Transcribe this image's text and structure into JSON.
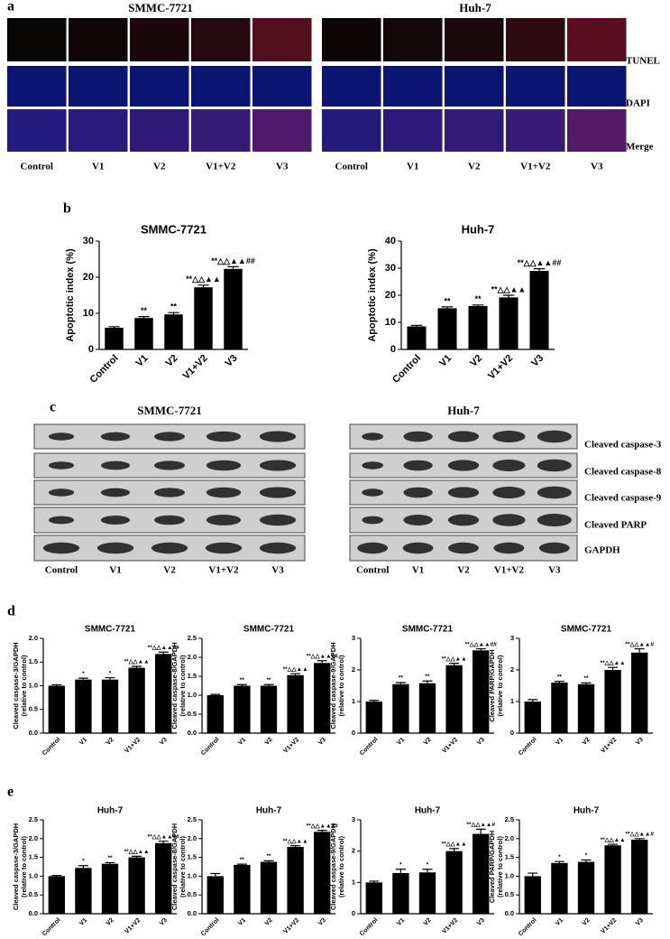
{
  "panel_labels": {
    "a": "a",
    "b": "b",
    "c": "c",
    "d": "d",
    "e": "e"
  },
  "panel_a": {
    "groups": [
      {
        "title": "SMMC-7721",
        "columns": [
          "Control",
          "V1",
          "V2",
          "V1+V2",
          "V3"
        ]
      },
      {
        "title": "Huh-7",
        "columns": [
          "Control",
          "V1",
          "V2",
          "V1+V2",
          "V3"
        ]
      }
    ],
    "rows": [
      "TUNEL",
      "DAPI",
      "Merge"
    ]
  },
  "panel_c": {
    "groups": [
      {
        "title": "SMMC-7721",
        "columns": [
          "Control",
          "V1",
          "V2",
          "V1+V2",
          "V3"
        ]
      },
      {
        "title": "Huh-7",
        "columns": [
          "Control",
          "V1",
          "V2",
          "V1+V2",
          "V3"
        ]
      }
    ],
    "rows": [
      "Cleaved caspase-3",
      "Cleaved caspase-8",
      "Cleaved caspase-9",
      "Cleaved PARP",
      "GAPDH"
    ]
  },
  "chart_data": [
    {
      "type": "bar",
      "title": "SMMC-7721",
      "y_label": [
        "Apoptotic index (%)"
      ],
      "categories": [
        "Control",
        "V1",
        "V2",
        "V1+V2",
        "V3"
      ],
      "values": [
        6,
        8.7,
        9.7,
        17.2,
        22.3
      ],
      "errors": [
        0.3,
        0.4,
        0.5,
        0.6,
        0.6
      ],
      "annotations": [
        null,
        "**",
        "**",
        "**△△▲▲",
        "**△△▲▲##"
      ],
      "color": "#000000",
      "ylim": [
        0,
        30
      ],
      "yticks": [
        0,
        10,
        20,
        30
      ]
    },
    {
      "type": "bar",
      "title": "Huh-7",
      "y_label": [
        "Apoptotic index (%)"
      ],
      "categories": [
        "Control",
        "V1",
        "V2",
        "V1+V2",
        "V3"
      ],
      "values": [
        8.5,
        15.2,
        16,
        19.2,
        29
      ],
      "errors": [
        0.4,
        0.5,
        0.4,
        0.8,
        0.8
      ],
      "annotations": [
        null,
        "**",
        "**",
        "**△△▲▲",
        "**△△▲▲##"
      ],
      "color": "#000000",
      "ylim": [
        0,
        40
      ],
      "yticks": [
        0,
        10,
        20,
        30,
        40
      ]
    },
    {
      "type": "bar",
      "title": "SMMC-7721",
      "y_label": [
        "Cleaved caspase-3/GAPDH",
        "(relative to control)"
      ],
      "categories": [
        "Control",
        "V1",
        "V2",
        "V1+V2",
        "V3"
      ],
      "values": [
        1.0,
        1.13,
        1.13,
        1.38,
        1.67
      ],
      "errors": [
        0.02,
        0.03,
        0.04,
        0.03,
        0.04
      ],
      "annotations": [
        null,
        "*",
        "*",
        "**△△▲▲",
        "**△△▲▲##"
      ],
      "color": "#000000",
      "ylim": [
        0,
        2
      ],
      "yticks": [
        {
          "value": 0,
          "label": "0.0"
        },
        {
          "value": 0.5,
          "label": "0.5"
        },
        {
          "value": 1,
          "label": "1.0"
        },
        {
          "value": 1.5,
          "label": "1.5"
        },
        {
          "value": 2,
          "label": "2.0"
        }
      ]
    },
    {
      "type": "bar",
      "title": "SMMC-7721",
      "y_label": [
        "Cleaved caspase-8/GAPDH",
        "(relative to control)"
      ],
      "categories": [
        "Control",
        "V1",
        "V2",
        "V1+V2",
        "V3"
      ],
      "values": [
        1.0,
        1.25,
        1.25,
        1.53,
        1.85
      ],
      "errors": [
        0.02,
        0.03,
        0.03,
        0.04,
        0.06
      ],
      "annotations": [
        null,
        "**",
        "**",
        "**△△▲▲",
        "**△△▲▲##"
      ],
      "color": "#000000",
      "ylim": [
        0,
        2.5
      ],
      "yticks": [
        {
          "value": 0,
          "label": "0.0"
        },
        {
          "value": 0.5,
          "label": "0.5"
        },
        {
          "value": 1,
          "label": "1.0"
        },
        {
          "value": 1.5,
          "label": "1.5"
        },
        {
          "value": 2,
          "label": "2.0"
        },
        {
          "value": 2.5,
          "label": "2.5"
        }
      ]
    },
    {
      "type": "bar",
      "title": "SMMC-7721",
      "y_label": [
        "Cleaved caspase-9/GAPDH",
        "(relative to control)"
      ],
      "categories": [
        "Control",
        "V1",
        "V2",
        "V1+V2",
        "V3"
      ],
      "values": [
        1.0,
        1.55,
        1.58,
        2.15,
        2.62
      ],
      "errors": [
        0.04,
        0.05,
        0.07,
        0.06,
        0.05
      ],
      "annotations": [
        null,
        "**",
        "**",
        "**△△▲▲",
        "**△△▲▲##"
      ],
      "color": "#000000",
      "ylim": [
        0,
        3
      ],
      "yticks": [
        0,
        1,
        2,
        3
      ]
    },
    {
      "type": "bar",
      "title": "SMMC-7721",
      "y_label": [
        "Cleaved PARP/GAPDH",
        "(relative to control)"
      ],
      "categories": [
        "Control",
        "V1",
        "V2",
        "V1+V2",
        "V3"
      ],
      "values": [
        1.0,
        1.6,
        1.55,
        2.0,
        2.55
      ],
      "errors": [
        0.06,
        0.04,
        0.04,
        0.08,
        0.12
      ],
      "annotations": [
        null,
        "**",
        "**",
        "**△△▲▲",
        "**△△▲▲#"
      ],
      "color": "#000000",
      "ylim": [
        0,
        3
      ],
      "yticks": [
        0,
        1,
        2,
        3
      ]
    },
    {
      "type": "bar",
      "title": "Huh-7",
      "y_label": [
        "Cleaved caspase-3/GAPDH",
        "(relative to control)"
      ],
      "categories": [
        "Control",
        "V1",
        "V2",
        "V1+V2",
        "V3"
      ],
      "values": [
        1.0,
        1.22,
        1.33,
        1.5,
        1.88
      ],
      "errors": [
        0.02,
        0.06,
        0.03,
        0.03,
        0.05
      ],
      "annotations": [
        null,
        "*",
        "**",
        "**△△▲▲",
        "**△△▲▲##"
      ],
      "color": "#000000",
      "ylim": [
        0,
        2.5
      ],
      "yticks": [
        {
          "value": 0,
          "label": "0.0"
        },
        {
          "value": 0.5,
          "label": "0.5"
        },
        {
          "value": 1,
          "label": "1.0"
        },
        {
          "value": 1.5,
          "label": "1.5"
        },
        {
          "value": 2,
          "label": "2.0"
        },
        {
          "value": 2.5,
          "label": "2.5"
        }
      ]
    },
    {
      "type": "bar",
      "title": "Huh-7",
      "y_label": [
        "Cleaved caspase-8/GAPDH",
        "(relative to control)"
      ],
      "categories": [
        "Control",
        "V1",
        "V2",
        "V1+V2",
        "V3"
      ],
      "values": [
        1.0,
        1.3,
        1.38,
        1.78,
        2.18
      ],
      "errors": [
        0.07,
        0.02,
        0.03,
        0.03,
        0.04
      ],
      "annotations": [
        null,
        "**",
        "**",
        "**△△▲▲",
        "**△△▲▲##"
      ],
      "color": "#000000",
      "ylim": [
        0,
        2.5
      ],
      "yticks": [
        {
          "value": 0,
          "label": "0.0"
        },
        {
          "value": 0.5,
          "label": "0.5"
        },
        {
          "value": 1,
          "label": "1.0"
        },
        {
          "value": 1.5,
          "label": "1.5"
        },
        {
          "value": 2,
          "label": "2.0"
        },
        {
          "value": 2.5,
          "label": "2.5"
        }
      ]
    },
    {
      "type": "bar",
      "title": "Huh-7",
      "y_label": [
        "Cleaved caspase-9/GAPDH",
        "(relative to control)"
      ],
      "categories": [
        "Control",
        "V1",
        "V2",
        "V1+V2",
        "V3"
      ],
      "values": [
        1.0,
        1.3,
        1.32,
        2.0,
        2.55
      ],
      "errors": [
        0.04,
        0.12,
        0.1,
        0.08,
        0.15
      ],
      "annotations": [
        null,
        "*",
        "*",
        "**△△▲▲",
        "**△△▲▲#"
      ],
      "color": "#000000",
      "ylim": [
        0,
        3
      ],
      "yticks": [
        0,
        1,
        2,
        3
      ]
    },
    {
      "type": "bar",
      "title": "Huh-7",
      "y_label": [
        "Cleaved PARP/GAPDH",
        "(relative to control)"
      ],
      "categories": [
        "Control",
        "V1",
        "V2",
        "V1+V2",
        "V3"
      ],
      "values": [
        1.0,
        1.35,
        1.38,
        1.82,
        1.97
      ],
      "errors": [
        0.08,
        0.04,
        0.05,
        0.03,
        0.03
      ],
      "annotations": [
        null,
        "*",
        "*",
        "**△△▲▲",
        "**△△▲▲#"
      ],
      "color": "#000000",
      "ylim": [
        0,
        2.5
      ],
      "yticks": [
        {
          "value": 0,
          "label": "0.0"
        },
        {
          "value": 0.5,
          "label": "0.5"
        },
        {
          "value": 1,
          "label": "1.0"
        },
        {
          "value": 1.5,
          "label": "1.5"
        },
        {
          "value": 2,
          "label": "2.0"
        },
        {
          "value": 2.5,
          "label": "2.5"
        }
      ]
    }
  ]
}
